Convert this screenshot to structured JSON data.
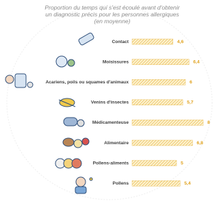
{
  "chart_data": {
    "type": "bar",
    "orientation": "horizontal",
    "title": [
      "Proportion du temps qui s'est écoulé avant d'obtenir",
      "un diagnostic précis pour les personnes allergiques",
      "(en moyenne)"
    ],
    "categories": [
      "Contact",
      "Moisissures",
      "Acariens, poils ou squames d'animaux",
      "Venins d'insectes",
      "Médicamenteuse",
      "Alimentaire",
      "Pollens-aliments",
      "Pollens"
    ],
    "values": [
      4.6,
      6.4,
      6,
      5.7,
      8,
      6.8,
      5,
      5.4
    ],
    "value_labels": [
      "4,6",
      "6,4",
      "6",
      "5,7",
      "8",
      "6,8",
      "5",
      "5,4"
    ],
    "color": "#e8b84a"
  }
}
